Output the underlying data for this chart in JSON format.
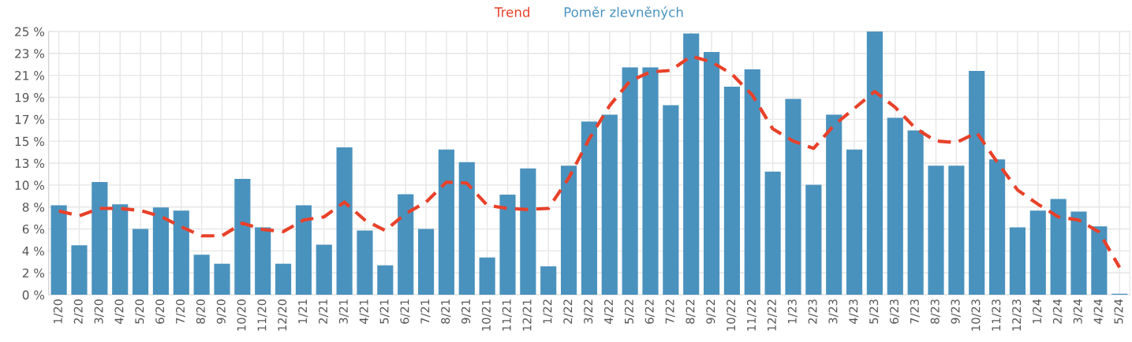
{
  "chart_data": {
    "type": "bar",
    "categories": [
      "1/20",
      "2/20",
      "3/20",
      "4/20",
      "5/20",
      "6/20",
      "7/20",
      "8/20",
      "9/20",
      "10/20",
      "11/20",
      "12/20",
      "1/21",
      "2/21",
      "3/21",
      "4/21",
      "5/21",
      "6/21",
      "7/21",
      "8/21",
      "9/21",
      "10/21",
      "11/21",
      "12/21",
      "1/22",
      "2/22",
      "3/22",
      "4/22",
      "5/22",
      "6/22",
      "7/22",
      "8/22",
      "9/22",
      "10/22",
      "11/22",
      "12/22",
      "1/23",
      "2/23",
      "3/23",
      "4/23",
      "5/23",
      "6/23",
      "7/23",
      "8/23",
      "9/23",
      "10/23",
      "11/23",
      "12/23",
      "1/24",
      "2/24",
      "3/24",
      "4/24",
      "5/24"
    ],
    "series": [
      {
        "name": "Trend",
        "type": "line",
        "color": "#e8412a",
        "line_style": "dashed",
        "values": [
          7.95,
          7.5,
          8.2,
          8.2,
          8.0,
          7.45,
          6.45,
          5.6,
          5.6,
          6.8,
          6.2,
          6.0,
          7.1,
          7.4,
          8.8,
          7.1,
          6.1,
          7.7,
          8.8,
          10.7,
          10.6,
          8.5,
          8.2,
          8.1,
          8.2,
          11.1,
          14.8,
          17.95,
          20.3,
          21.15,
          21.3,
          22.65,
          22.1,
          20.95,
          18.95,
          15.75,
          14.6,
          13.9,
          16.1,
          17.7,
          19.3,
          17.8,
          15.8,
          14.6,
          14.45,
          15.4,
          12.6,
          9.95,
          8.6,
          7.4,
          7.1,
          5.95,
          2.6
        ]
      },
      {
        "name": "Poměr zlevněných",
        "color": "#4a92be",
        "values": [
          8.5,
          4.7,
          10.7,
          8.6,
          6.25,
          8.3,
          8.0,
          3.8,
          2.95,
          11.0,
          6.4,
          2.95,
          8.5,
          4.75,
          14.0,
          6.1,
          2.8,
          9.55,
          6.25,
          13.8,
          12.6,
          3.55,
          9.5,
          12.0,
          2.7,
          12.25,
          16.45,
          17.1,
          21.6,
          21.6,
          18.0,
          24.8,
          23.05,
          19.75,
          21.4,
          11.7,
          18.6,
          10.45,
          17.1,
          13.8,
          25.0,
          16.8,
          15.6,
          12.25,
          12.25,
          21.25,
          12.85,
          6.4,
          8.0,
          9.1,
          7.9,
          6.5,
          0.1
        ]
      }
    ],
    "ylim": [
      0,
      25
    ],
    "yticks": [
      {
        "value": 0,
        "label": "0 %"
      },
      {
        "value": 2.0833,
        "label": "2 %"
      },
      {
        "value": 4.1667,
        "label": "4 %"
      },
      {
        "value": 6.25,
        "label": "6 %"
      },
      {
        "value": 8.3333,
        "label": "8 %"
      },
      {
        "value": 10.4167,
        "label": "10 %"
      },
      {
        "value": 12.5,
        "label": "13 %"
      },
      {
        "value": 14.5833,
        "label": "15 %"
      },
      {
        "value": 16.6667,
        "label": "17 %"
      },
      {
        "value": 18.75,
        "label": "19 %"
      },
      {
        "value": 20.8333,
        "label": "21 %"
      },
      {
        "value": 22.9167,
        "label": "23 %"
      },
      {
        "value": 25,
        "label": "25 %"
      }
    ],
    "grid": true,
    "legend": "top"
  }
}
